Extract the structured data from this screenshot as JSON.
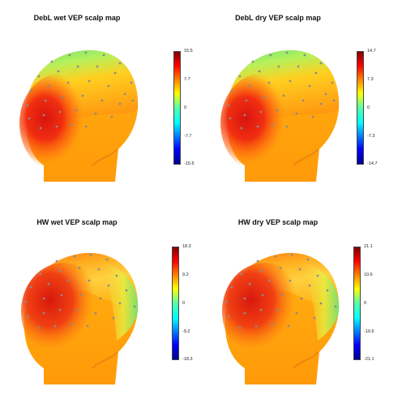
{
  "colors": {
    "scale_top": "#800000",
    "scale_high": "#ff0000",
    "scale_upper": "#ffff00",
    "scale_mid": "#00ffaa",
    "scale_lower": "#00a0ff",
    "scale_low": "#0000ff",
    "scale_bottom": "#00008f",
    "electrode": "#8c8c8c"
  },
  "panels": [
    {
      "id": "debl-wet",
      "title": "DebL wet VEP scalp map",
      "ticks": [
        "15.5",
        "7.7",
        "0",
        "-7.7",
        "-15.5"
      ]
    },
    {
      "id": "debl-dry",
      "title": "DebL dry VEP scalp map",
      "ticks": [
        "14.7",
        "7.3",
        "0",
        "-7.3",
        "-14.7"
      ]
    },
    {
      "id": "hw-wet",
      "title": "HW wet VEP scalp map",
      "ticks": [
        "18.3",
        "9.2",
        "0",
        "-9.2",
        "-18.3"
      ]
    },
    {
      "id": "hw-dry",
      "title": "HW dry VEP scalp map",
      "ticks": [
        "21.1",
        "10.6",
        "0",
        "-10.6",
        "-21.1"
      ]
    }
  ]
}
